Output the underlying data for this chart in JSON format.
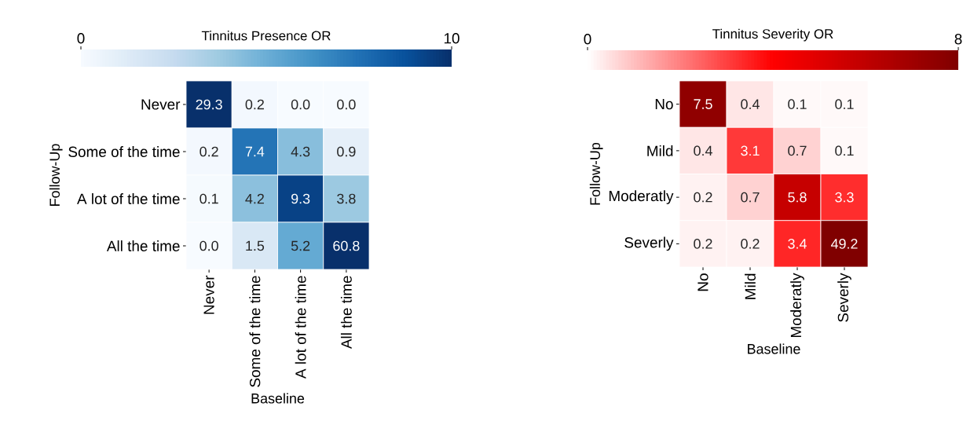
{
  "chart_data": [
    {
      "type": "heatmap",
      "clabel": "Tinnitus Presence OR",
      "xlabel": "Baseline",
      "ylabel": "Follow-Up",
      "categories": [
        "Never",
        "Some of the time",
        "A lot of the time",
        "All the time"
      ],
      "y_categories": [
        "Never",
        "Some of the time",
        "A lot of the time",
        "All the time"
      ],
      "cells": [
        [
          29.3,
          0.2,
          0.0,
          0.0
        ],
        [
          0.2,
          7.4,
          4.3,
          0.9
        ],
        [
          0.1,
          4.2,
          9.3,
          3.8
        ],
        [
          0.0,
          1.5,
          5.2,
          60.8
        ]
      ],
      "cell_labels": [
        [
          "29.3",
          "0.2",
          "0.0",
          "0.0"
        ],
        [
          "0.2",
          "7.4",
          "4.3",
          "0.9"
        ],
        [
          "0.1",
          "4.2",
          "9.3",
          "3.8"
        ],
        [
          "0.0",
          "1.5",
          "5.2",
          "60.8"
        ]
      ],
      "clim": [
        0,
        10
      ],
      "cticks": [
        0,
        10
      ],
      "data_labels": true
    },
    {
      "type": "heatmap",
      "clabel": "Tinnitus Severity OR",
      "xlabel": "Baseline",
      "ylabel": "Follow-Up",
      "categories": [
        "No",
        "Mild",
        "Moderatly",
        "Severly"
      ],
      "y_categories": [
        "No",
        "Mild",
        "Moderatly",
        "Severly"
      ],
      "cells": [
        [
          7.5,
          0.4,
          0.1,
          0.1
        ],
        [
          0.4,
          3.1,
          0.7,
          0.1
        ],
        [
          0.2,
          0.7,
          5.8,
          3.3
        ],
        [
          0.2,
          0.2,
          3.4,
          49.2
        ]
      ],
      "clim": [
        0,
        8
      ],
      "cticks": [
        0,
        8
      ],
      "data_labels": true
    }
  ]
}
